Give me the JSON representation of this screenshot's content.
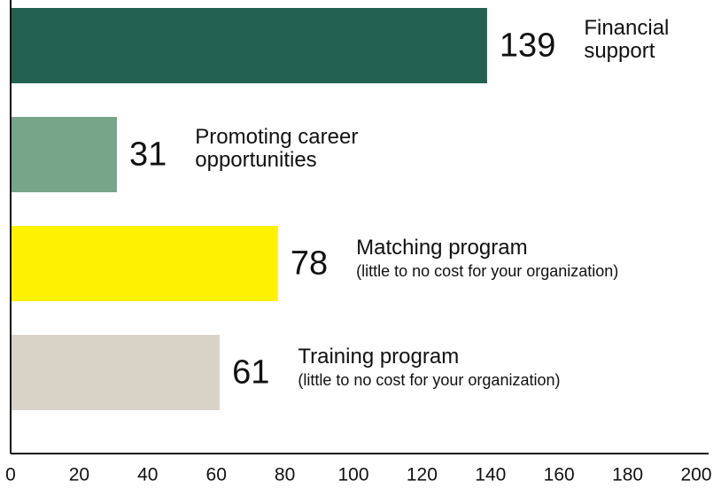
{
  "chart_data": {
    "type": "barh",
    "categories": [
      "Financial support",
      "Promoting career opportunities",
      "Matching program",
      "Training program"
    ],
    "category_notes": [
      null,
      null,
      "(little to no cost for your organization)",
      "(little to no cost for your organization)"
    ],
    "values": [
      139,
      31,
      78,
      61
    ],
    "colors": [
      "#236150",
      "#76a58a",
      "#fff200",
      "#d9d3c7"
    ],
    "xlim": [
      0,
      200
    ],
    "xticks": [
      0,
      20,
      40,
      60,
      80,
      100,
      120,
      140,
      160,
      180,
      200
    ]
  }
}
